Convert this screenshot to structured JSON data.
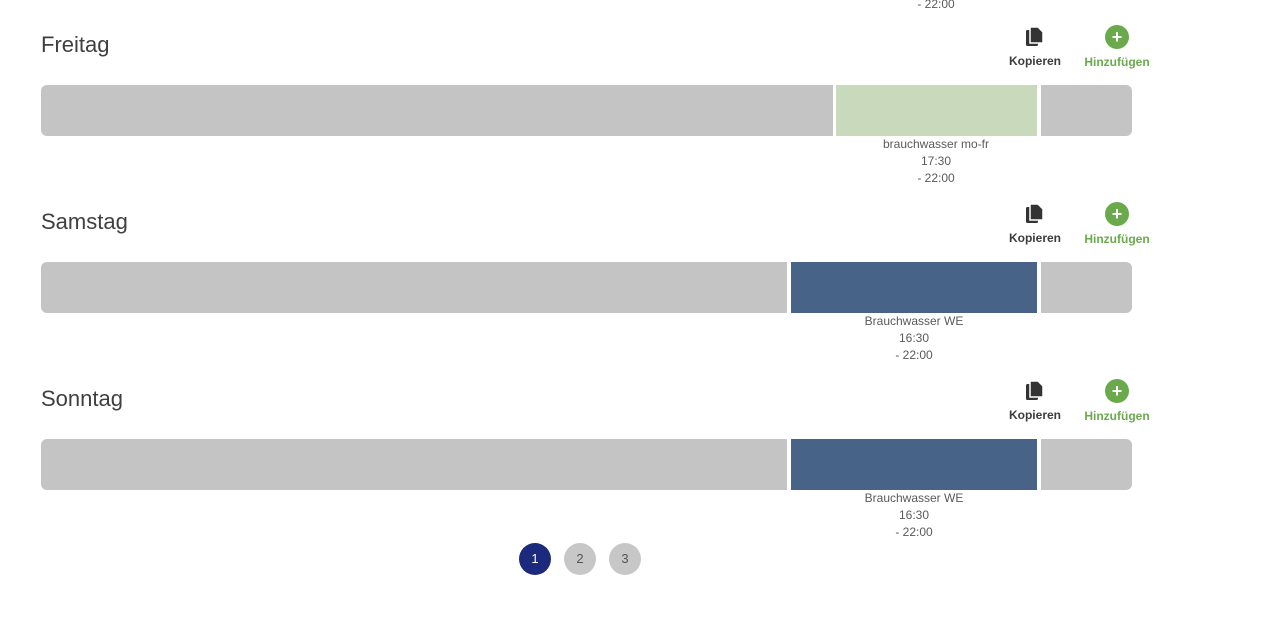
{
  "clipped_previous_label": "- 22:00",
  "days": [
    {
      "title": "Freitag",
      "copy_label": "Kopieren",
      "add_label": "Hinzufügen",
      "slot": {
        "name": "brauchwasser mo-fr",
        "start": "17:30",
        "end": "- 22:00",
        "color": "#c9d9bb"
      }
    },
    {
      "title": "Samstag",
      "copy_label": "Kopieren",
      "add_label": "Hinzufügen",
      "slot": {
        "name": "Brauchwasser WE",
        "start": "16:30",
        "end": "- 22:00",
        "color": "#476488"
      }
    },
    {
      "title": "Sonntag",
      "copy_label": "Kopieren",
      "add_label": "Hinzufügen",
      "slot": {
        "name": "Brauchwasser WE",
        "start": "16:30",
        "end": "- 22:00",
        "color": "#476488"
      }
    }
  ],
  "pagination": {
    "pages": [
      "1",
      "2",
      "3"
    ],
    "current": "1"
  },
  "colors": {
    "accent_green": "#6aaa4d",
    "active_page": "#1c2a7d",
    "free_slot": "#c4c4c4"
  }
}
